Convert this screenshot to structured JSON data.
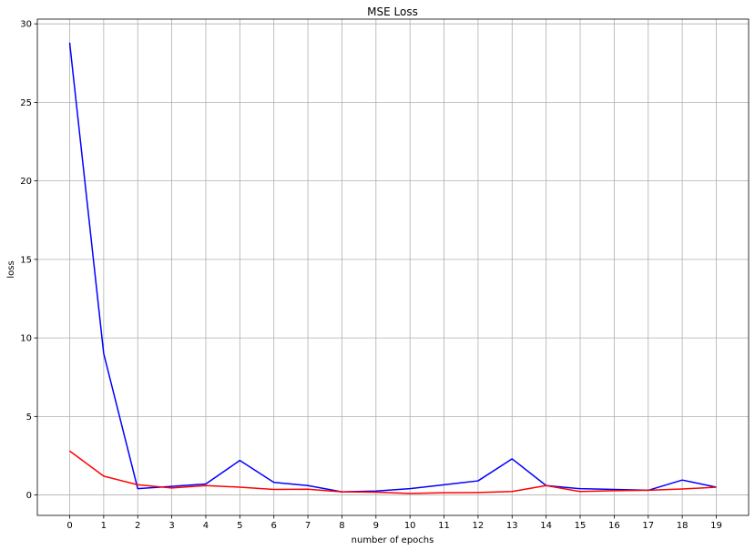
{
  "chart_data": {
    "type": "line",
    "title": "MSE Loss",
    "xlabel": "number of epochs",
    "ylabel": "loss",
    "x": [
      0,
      1,
      2,
      3,
      4,
      5,
      6,
      7,
      8,
      9,
      10,
      11,
      12,
      13,
      14,
      15,
      16,
      17,
      18,
      19
    ],
    "x_ticks": [
      "0",
      "1",
      "2",
      "3",
      "4",
      "5",
      "6",
      "7",
      "8",
      "9",
      "10",
      "11",
      "12",
      "13",
      "14",
      "15",
      "16",
      "17",
      "18",
      "19"
    ],
    "y_ticks": [
      0,
      5,
      10,
      15,
      20,
      25,
      30
    ],
    "xlim": [
      -0.95,
      19.95
    ],
    "ylim": [
      -1.3,
      30.3
    ],
    "grid": true,
    "series": [
      {
        "color": "#0000ff",
        "values": [
          28.8,
          9.0,
          0.4,
          0.55,
          0.7,
          2.2,
          0.8,
          0.6,
          0.2,
          0.25,
          0.4,
          0.65,
          0.9,
          2.3,
          0.6,
          0.4,
          0.35,
          0.3,
          0.95,
          0.5
        ]
      },
      {
        "color": "#ff0000",
        "values": [
          2.8,
          1.2,
          0.65,
          0.45,
          0.6,
          0.5,
          0.35,
          0.37,
          0.2,
          0.18,
          0.1,
          0.14,
          0.16,
          0.22,
          0.6,
          0.22,
          0.27,
          0.3,
          0.38,
          0.5
        ]
      }
    ]
  }
}
